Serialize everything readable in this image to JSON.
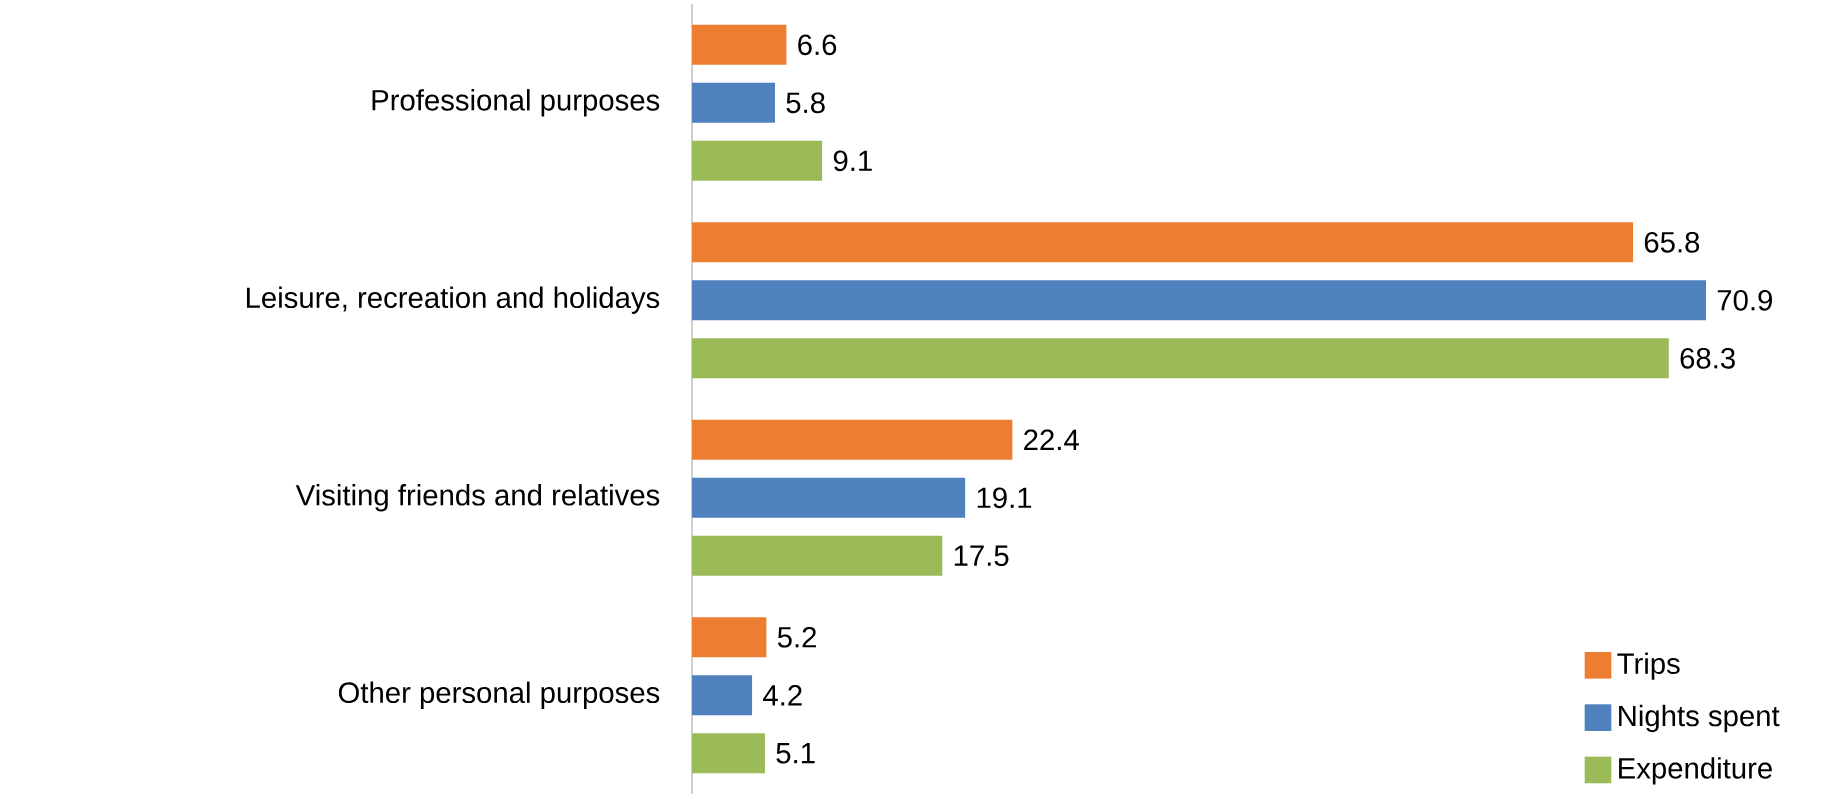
{
  "chart_data": {
    "type": "bar",
    "orientation": "horizontal",
    "categories": [
      "Professional purposes",
      "Leisure, recreation and holidays",
      "Visiting friends and relatives",
      "Other personal purposes"
    ],
    "series": [
      {
        "name": "Trips",
        "color": "#ed7d31",
        "values": [
          6.6,
          65.8,
          22.4,
          5.2
        ]
      },
      {
        "name": "Nights spent",
        "color": "#4f81bd",
        "values": [
          5.8,
          70.9,
          19.1,
          4.2
        ]
      },
      {
        "name": "Expenditure",
        "color": "#9bbb59",
        "values": [
          9.1,
          68.3,
          17.5,
          5.1
        ]
      }
    ],
    "data_labels": true,
    "legend": "bottom right"
  }
}
